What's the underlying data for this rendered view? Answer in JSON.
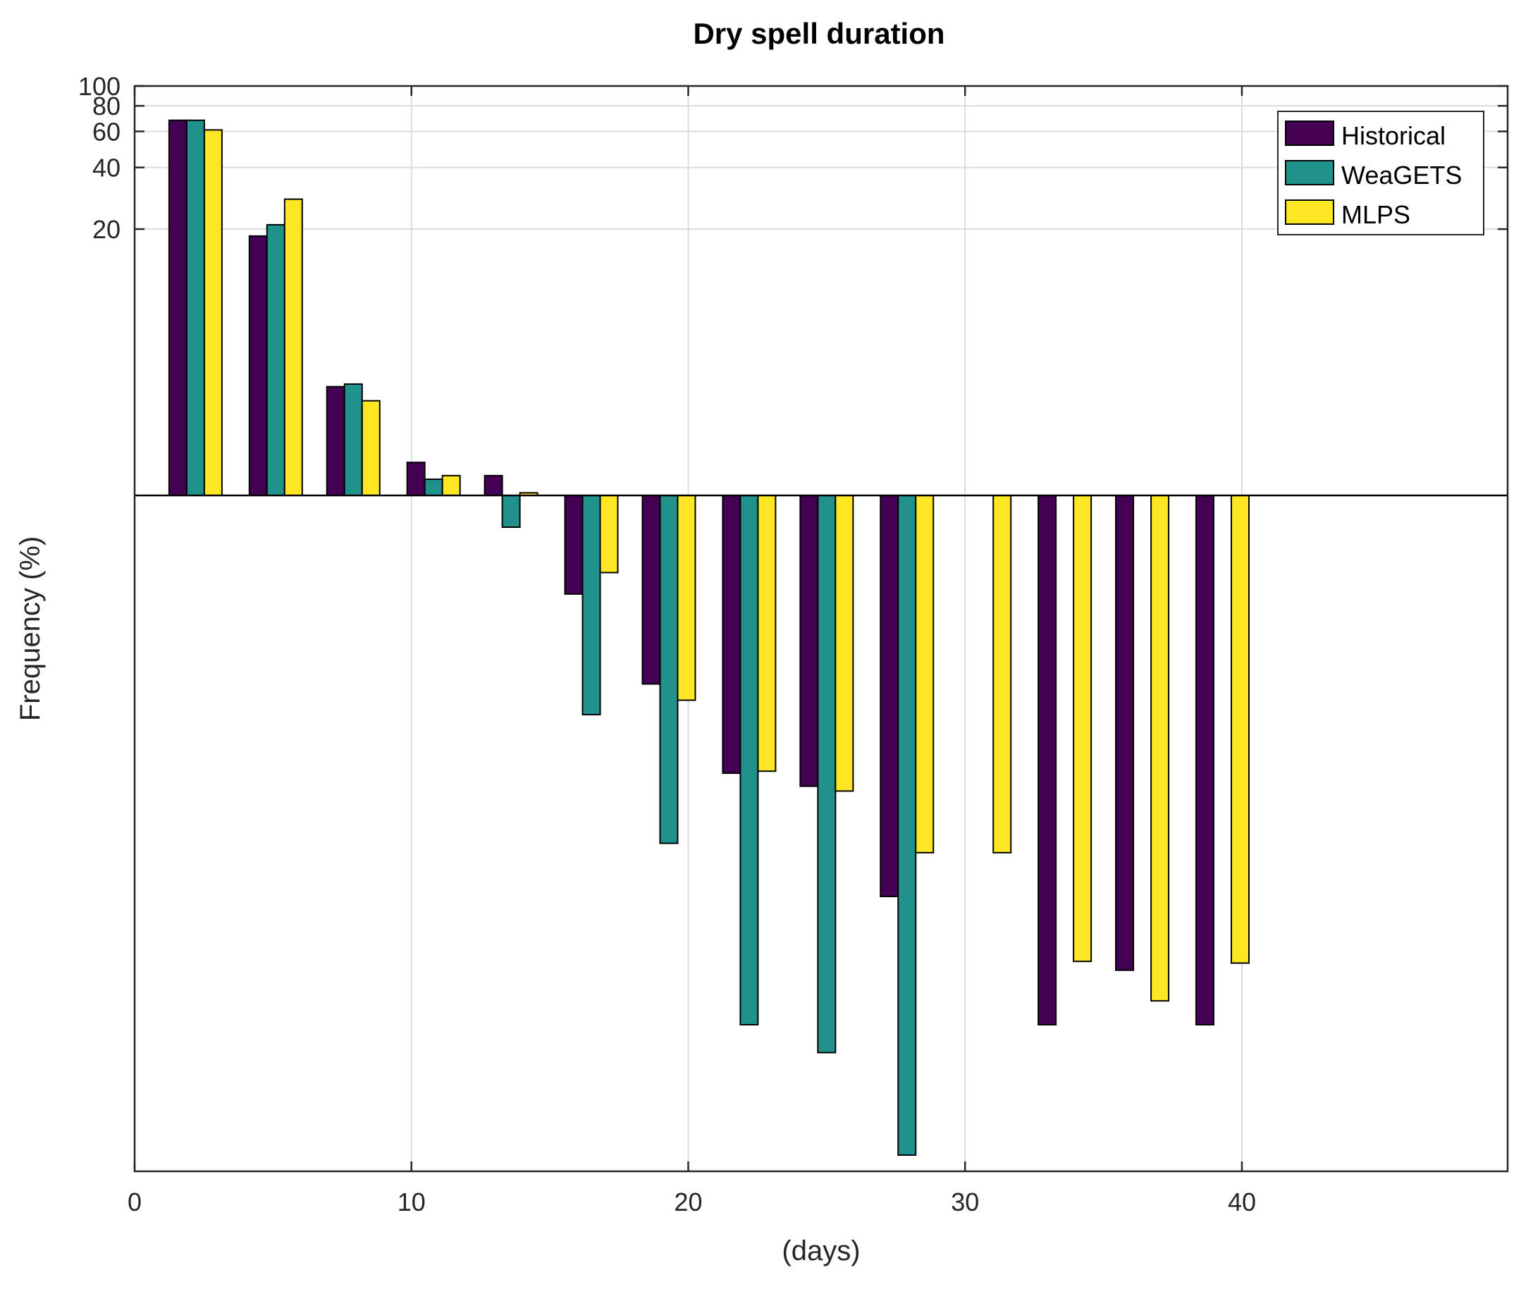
{
  "chart_data": {
    "type": "bar",
    "title": "Dry spell duration",
    "xlabel": "(days)",
    "ylabel": "Frequency (%)",
    "yscale": "log",
    "xlim": [
      0,
      49.6
    ],
    "ylim": [
      0.0005,
      100
    ],
    "baseline": 1,
    "grid": true,
    "x_ticks": [
      0,
      10,
      20,
      30,
      40
    ],
    "x_tick_labels": [
      "0",
      "10",
      "20",
      "30",
      "40"
    ],
    "y_ticks": [
      20,
      40,
      60,
      80,
      100
    ],
    "y_tick_labels": [
      "20",
      "40",
      "60",
      "80",
      "100"
    ],
    "legend_position": "top-right",
    "x": [
      2.2,
      5.1,
      7.9,
      10.8,
      13.6,
      16.5,
      19.3,
      22.2,
      25.0,
      27.9,
      30.7,
      33.6,
      36.4,
      39.3
    ],
    "series": [
      {
        "name": "Historical",
        "color": "#440154",
        "values": [
          68,
          18.5,
          3.4,
          1.45,
          1.25,
          0.33,
          0.12,
          0.044,
          0.038,
          0.011,
          null,
          0.0026,
          0.0048,
          0.0026
        ]
      },
      {
        "name": "WeaGETS",
        "color": "#21918c",
        "values": [
          68,
          21,
          3.5,
          1.2,
          0.7,
          0.085,
          0.02,
          0.0026,
          0.0019,
          0.0006,
          null,
          null,
          null,
          null
        ]
      },
      {
        "name": "MLPS",
        "color": "#fde725",
        "values": [
          61,
          28,
          2.9,
          1.25,
          1.03,
          0.42,
          0.1,
          0.045,
          0.036,
          0.018,
          0.018,
          0.0053,
          0.0034,
          0.0052
        ]
      }
    ]
  }
}
